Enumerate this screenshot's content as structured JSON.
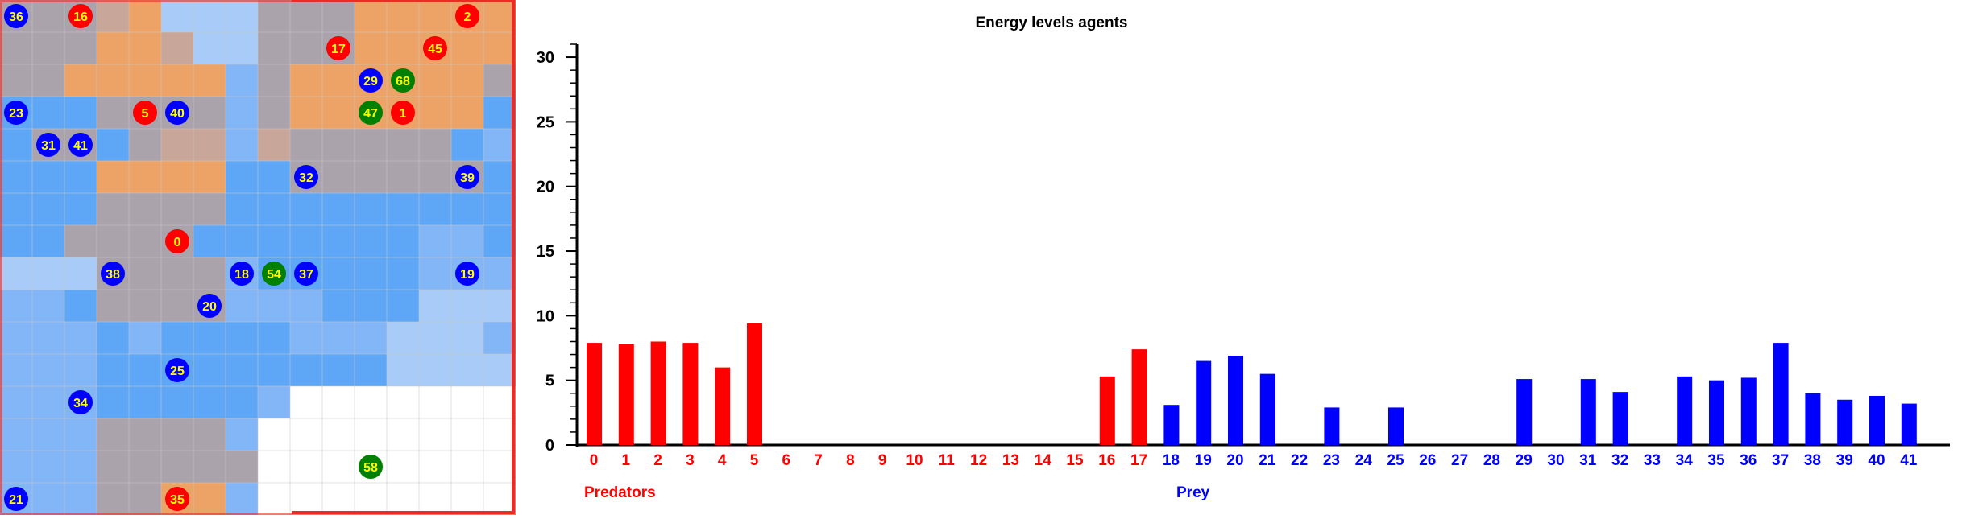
{
  "grid": {
    "cols": 16,
    "rows": 16,
    "colors": {
      "gray": "#aba3ac",
      "orange": "#eda366",
      "brown": "#c9a69a",
      "light_orange": "#f2ad78",
      "blue": "#5ea7f6",
      "mid_blue": "#82b6f6",
      "light_blue": "#a9cbf7",
      "white": "#ffffff",
      "grid_line": "#c8c8c8",
      "red_border": "#ee2a22"
    },
    "cells": [
      "gggboLLLgggooooo",
      "gggoobLLgggooooo",
      "ggoooooMgoooooog",
      "BBBggggMgooooooB",
      "BggBgbbMbgggggBM",
      "BBBooooBBggggggB",
      "BBBggggBBBBBBBBB",
      "BBggggBBBBBBBMMB",
      "LLLggggMBBBBBMMM",
      "MMBggggMMMBBBLLL",
      "MMMBMBBBBMMMLLLM",
      "MMMBBBBBBBBBLLLL",
      "MMMBBBBBMWWWWWWW",
      "MMMggggMWWWWWWWW",
      "MMMgggggWWWWWWWW",
      "MMMggooMWWWWWWWW"
    ],
    "agents": [
      {
        "id": "36",
        "kind": "prey",
        "col": 0,
        "row": 0
      },
      {
        "id": "16",
        "kind": "predator",
        "col": 2,
        "row": 0
      },
      {
        "id": "2",
        "kind": "predator",
        "col": 14,
        "row": 0
      },
      {
        "id": "17",
        "kind": "predator",
        "col": 10,
        "row": 1
      },
      {
        "id": "45",
        "kind": "predator",
        "col": 13,
        "row": 1
      },
      {
        "id": "29",
        "kind": "prey",
        "col": 11,
        "row": 2
      },
      {
        "id": "68",
        "kind": "other",
        "col": 12,
        "row": 2
      },
      {
        "id": "23",
        "kind": "prey",
        "col": 0,
        "row": 3
      },
      {
        "id": "5",
        "kind": "predator",
        "col": 4,
        "row": 3
      },
      {
        "id": "40",
        "kind": "prey",
        "col": 5,
        "row": 3
      },
      {
        "id": "47",
        "kind": "other",
        "col": 11,
        "row": 3
      },
      {
        "id": "1",
        "kind": "predator",
        "col": 12,
        "row": 3
      },
      {
        "id": "31",
        "kind": "prey",
        "col": 1,
        "row": 4
      },
      {
        "id": "41",
        "kind": "prey",
        "col": 2,
        "row": 4
      },
      {
        "id": "32",
        "kind": "prey",
        "col": 9,
        "row": 5
      },
      {
        "id": "39",
        "kind": "prey",
        "col": 14,
        "row": 5
      },
      {
        "id": "0",
        "kind": "predator",
        "col": 5,
        "row": 7
      },
      {
        "id": "38",
        "kind": "prey",
        "col": 3,
        "row": 8
      },
      {
        "id": "18",
        "kind": "prey",
        "col": 7,
        "row": 8
      },
      {
        "id": "54",
        "kind": "other",
        "col": 8,
        "row": 8
      },
      {
        "id": "37",
        "kind": "prey",
        "col": 9,
        "row": 8
      },
      {
        "id": "19",
        "kind": "prey",
        "col": 14,
        "row": 8
      },
      {
        "id": "20",
        "kind": "prey",
        "col": 6,
        "row": 9
      },
      {
        "id": "25",
        "kind": "prey",
        "col": 5,
        "row": 11
      },
      {
        "id": "34",
        "kind": "prey",
        "col": 2,
        "row": 12
      },
      {
        "id": "58",
        "kind": "other",
        "col": 11,
        "row": 14
      },
      {
        "id": "21",
        "kind": "prey",
        "col": 0,
        "row": 15
      },
      {
        "id": "35",
        "kind": "predator",
        "col": 5,
        "row": 15
      }
    ],
    "agent_colors": {
      "predator": "#ff0000",
      "prey": "#0000ff",
      "other": "#008000",
      "label": "#ffff00"
    }
  },
  "chart_data": {
    "type": "bar",
    "title": "Energy levels agents",
    "xlabel": "",
    "ylabel": "",
    "ylim": [
      0,
      31
    ],
    "yticks": [
      0,
      5,
      10,
      15,
      20,
      25,
      30
    ],
    "grid": false,
    "categories": [
      "0",
      "1",
      "2",
      "3",
      "4",
      "5",
      "6",
      "7",
      "8",
      "9",
      "10",
      "11",
      "12",
      "13",
      "14",
      "15",
      "16",
      "17",
      "18",
      "19",
      "20",
      "21",
      "22",
      "23",
      "24",
      "25",
      "26",
      "27",
      "28",
      "29",
      "30",
      "31",
      "32",
      "33",
      "34",
      "35",
      "36",
      "37",
      "38",
      "39",
      "40",
      "41"
    ],
    "values": [
      7.9,
      7.8,
      8.0,
      7.9,
      6.0,
      9.4,
      0,
      0,
      0,
      0,
      0,
      0,
      0,
      0,
      0,
      0,
      5.3,
      7.4,
      3.1,
      6.5,
      6.9,
      5.5,
      0,
      2.9,
      0,
      2.9,
      0,
      0,
      0,
      5.1,
      0,
      5.1,
      4.1,
      0,
      5.3,
      5.0,
      5.2,
      7.9,
      4.0,
      3.5,
      3.8,
      3.2
    ],
    "groups": [
      {
        "label": "Predators",
        "start": 0,
        "end": 17,
        "color": "#ff0000"
      },
      {
        "label": "Prey",
        "start": 18,
        "end": 41,
        "color": "#0000ff"
      }
    ]
  }
}
